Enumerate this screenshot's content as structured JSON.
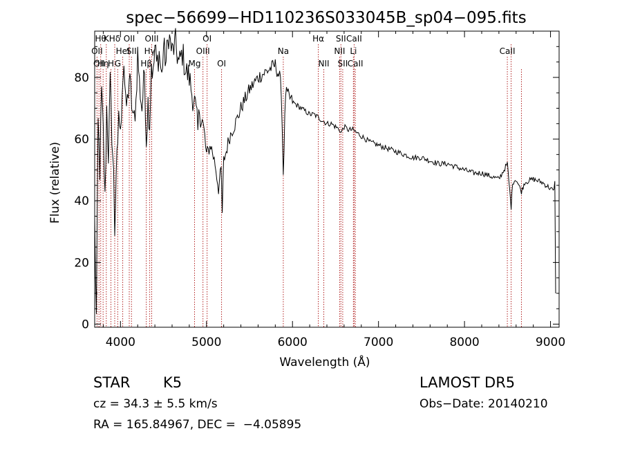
{
  "chart_data": {
    "type": "line",
    "title": "spec−56699−HD110236S033045B_sp04−095.fits",
    "xlabel": "Wavelength (Å)",
    "ylabel": "Flux (relative)",
    "xlim": [
      3700,
      9100
    ],
    "ylim": [
      -1,
      95
    ],
    "xticks": [
      4000,
      5000,
      6000,
      7000,
      8000,
      9000
    ],
    "yticks": [
      0,
      20,
      40,
      60,
      80
    ],
    "line_color": "#000000",
    "marker_color": "#b22222",
    "series": [
      {
        "x": [
          3700,
          3720,
          3740,
          3760,
          3780,
          3800,
          3820,
          3840,
          3860,
          3880,
          3900,
          3920,
          3933,
          3950,
          3968,
          3980,
          4000,
          4020,
          4040,
          4060,
          4080,
          4102,
          4120,
          4150,
          4180,
          4200,
          4220,
          4250,
          4280,
          4300,
          4320,
          4340,
          4360,
          4380,
          4400,
          4420,
          4450,
          4480,
          4500,
          4530,
          4560,
          4600,
          4640,
          4680,
          4720,
          4760,
          4800,
          4830,
          4861,
          4880,
          4900,
          4920,
          4950,
          4980,
          5000,
          5050,
          5100,
          5140,
          5170,
          5183,
          5200,
          5230,
          5260,
          5300,
          5350,
          5400,
          5450,
          5500,
          5550,
          5600,
          5650,
          5700,
          5750,
          5800,
          5850,
          5870,
          5893,
          5920,
          5950,
          6000,
          6050,
          6100,
          6150,
          6200,
          6250,
          6300,
          6350,
          6400,
          6450,
          6500,
          6550,
          6563,
          6600,
          6650,
          6700,
          6750,
          6800,
          6900,
          7000,
          7100,
          7200,
          7300,
          7400,
          7500,
          7600,
          7700,
          7800,
          7900,
          8000,
          8100,
          8200,
          8300,
          8400,
          8498,
          8542,
          8560,
          8600,
          8662,
          8700,
          8800,
          8900,
          9000,
          9040,
          9050,
          9060
        ],
        "y": [
          33,
          2,
          65,
          50,
          75,
          62,
          40,
          70,
          55,
          78,
          62,
          48,
          30,
          50,
          55,
          70,
          60,
          78,
          85,
          70,
          72,
          80,
          75,
          65,
          72,
          88,
          78,
          70,
          82,
          60,
          72,
          65,
          85,
          80,
          90,
          84,
          88,
          80,
          90,
          85,
          94,
          88,
          91,
          84,
          88,
          82,
          80,
          75,
          72,
          68,
          62,
          70,
          66,
          60,
          55,
          58,
          52,
          44,
          50,
          36,
          53,
          56,
          60,
          63,
          66,
          70,
          73,
          76,
          78,
          80,
          81,
          82,
          83,
          84,
          80,
          76,
          49,
          75,
          74,
          72,
          71,
          70,
          69,
          68,
          68,
          67,
          66,
          65,
          65,
          64,
          63,
          62,
          64,
          63,
          63,
          62,
          61,
          59,
          58,
          57,
          56,
          55,
          54,
          54,
          53,
          52,
          52,
          51,
          50,
          49,
          49,
          48,
          47,
          52,
          38,
          46,
          47,
          43,
          46,
          47,
          46,
          44,
          43,
          47,
          10
        ]
      }
    ],
    "lines": [
      {
        "wave": 3727,
        "rows": [
          1
        ]
      },
      {
        "wave": 3750,
        "rows": [
          2
        ]
      },
      {
        "wave": 3770,
        "rows": [
          0
        ]
      },
      {
        "wave": 3798,
        "rows": [
          2
        ]
      },
      {
        "wave": 3835,
        "rows": [
          0
        ]
      },
      {
        "wave": 3889,
        "rows": [
          2
        ]
      },
      {
        "wave": 3933,
        "rows": [
          0
        ]
      },
      {
        "wave": 3968,
        "rows": [
          2
        ]
      },
      {
        "wave": 4026,
        "rows": [
          1
        ]
      },
      {
        "wave": 4102,
        "rows": [
          0
        ]
      },
      {
        "wave": 4128,
        "rows": [
          1
        ]
      },
      {
        "wave": 4300,
        "rows": [
          2
        ]
      },
      {
        "wave": 4340,
        "rows": [
          1
        ]
      },
      {
        "wave": 4363,
        "rows": [
          0
        ]
      },
      {
        "wave": 4861,
        "rows": [
          2
        ]
      },
      {
        "wave": 4959,
        "rows": [
          1
        ]
      },
      {
        "wave": 5007,
        "rows": [
          0
        ]
      },
      {
        "wave": 5175,
        "rows": [
          2
        ]
      },
      {
        "wave": 5893,
        "rows": [
          1
        ]
      },
      {
        "wave": 6300,
        "rows": [
          0
        ]
      },
      {
        "wave": 6364,
        "rows": [
          2
        ]
      },
      {
        "wave": 6548,
        "rows": [
          1
        ]
      },
      {
        "wave": 6563,
        "rows": [
          0
        ]
      },
      {
        "wave": 6584,
        "rows": [
          2
        ]
      },
      {
        "wave": 6708,
        "rows": [
          1
        ]
      },
      {
        "wave": 6717,
        "rows": [
          0
        ]
      },
      {
        "wave": 6731,
        "rows": [
          2
        ]
      },
      {
        "wave": 8498,
        "rows": [
          1
        ]
      },
      {
        "wave": 8542,
        "rows": [
          0
        ]
      },
      {
        "wave": 8662,
        "rows": [
          2
        ]
      }
    ],
    "line_labels": [
      [
        "Hθ",
        "K",
        "Hδ",
        "OII",
        "OIII",
        "OI",
        "Hα",
        "SII",
        "CaII"
      ],
      [
        "OII",
        "HeI",
        "SII",
        "Hγ",
        "OIII",
        "Na",
        "NII",
        "Li",
        "CaII"
      ],
      [
        "OII",
        "Hη",
        "H",
        "G",
        "Hβ",
        "Mg",
        "OI",
        "NII",
        "SII",
        "CaII"
      ]
    ]
  },
  "info": {
    "object_type": "STAR",
    "subclass": "K5",
    "survey": "LAMOST DR5",
    "redshift": "cz = 34.3 ± 5.5 km/s",
    "obs_date": "Obs−Date: 20140210",
    "coords": "RA = 165.84967, DEC =  −4.05895"
  }
}
